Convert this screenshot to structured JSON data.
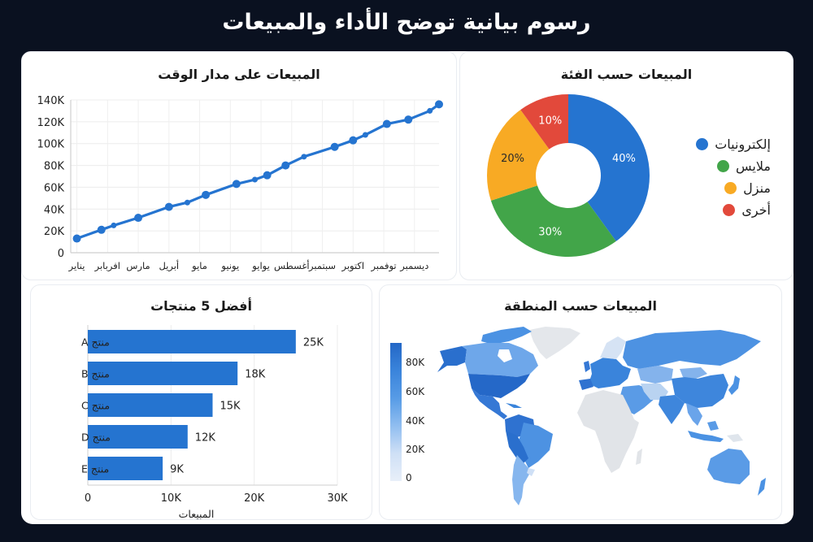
{
  "header": {
    "title": "رسوم بيانية توضح الأداء والمبيعات"
  },
  "colors": {
    "background": "#0a1120",
    "primary_blue": "#2574d0",
    "grid": "#e8e8e8",
    "axis": "#cfcfcf"
  },
  "panels": {
    "line": {
      "title": "المبيعات على مدار الوقت"
    },
    "donut": {
      "title": "المبيعات حسب الفئة"
    },
    "bar": {
      "title": "أفضل 5 منتجات"
    },
    "map": {
      "title": "المبيعات حسب المنطقة"
    }
  },
  "chart_data": [
    {
      "type": "line",
      "title": "المبيعات على مدار الوقت",
      "xlabel": "",
      "ylabel": "",
      "categories": [
        "يناير",
        "افربابر",
        "مارس",
        "أبريل",
        "مايو",
        "يونيو",
        "يوايو",
        "أغسطس",
        "سبتمبر",
        "اكتوبر",
        "توفمبر",
        "ديسمبر"
      ],
      "y_ticks": [
        "0",
        "20K",
        "40K",
        "60K",
        "80K",
        "100K",
        "120K",
        "140K"
      ],
      "ylim": [
        0,
        140000
      ],
      "grid": true,
      "series": [
        {
          "name": "المبيعات",
          "color": "#2574d0",
          "points": [
            {
              "x": 0.0,
              "y": 13000
            },
            {
              "x": 0.8,
              "y": 21000
            },
            {
              "x": 1.2,
              "y": 25000
            },
            {
              "x": 2.0,
              "y": 32000
            },
            {
              "x": 3.0,
              "y": 42000
            },
            {
              "x": 3.6,
              "y": 46000
            },
            {
              "x": 4.2,
              "y": 53000
            },
            {
              "x": 5.2,
              "y": 63000
            },
            {
              "x": 5.8,
              "y": 67000
            },
            {
              "x": 6.2,
              "y": 71000
            },
            {
              "x": 6.8,
              "y": 80000
            },
            {
              "x": 7.4,
              "y": 88000
            },
            {
              "x": 8.4,
              "y": 97000
            },
            {
              "x": 9.0,
              "y": 103000
            },
            {
              "x": 9.4,
              "y": 108000
            },
            {
              "x": 10.1,
              "y": 118000
            },
            {
              "x": 10.8,
              "y": 122000
            },
            {
              "x": 11.5,
              "y": 130000
            },
            {
              "x": 11.8,
              "y": 136000
            }
          ]
        }
      ]
    },
    {
      "type": "pie",
      "title": "المبيعات حسب الفئة",
      "donut": true,
      "legend_position": "right",
      "slices": [
        {
          "label": "إلكترونيات",
          "value": 40,
          "display": "40%",
          "color": "#2574d0",
          "text_color": "#ffffff"
        },
        {
          "label": "ملايس",
          "value": 30,
          "display": "30%",
          "color": "#42a549",
          "text_color": "#ffffff"
        },
        {
          "label": "منزل",
          "value": 20,
          "display": "20%",
          "color": "#f8aa24",
          "text_color": "#2a2a2a"
        },
        {
          "label": "أخرى",
          "value": 10,
          "display": "10%",
          "color": "#e2493b",
          "text_color": "#ffffff"
        }
      ]
    },
    {
      "type": "bar",
      "orientation": "horizontal",
      "title": "أفضل 5 منتجات",
      "xlabel": "المبيعات",
      "ylabel": "",
      "xlim": [
        0,
        30000
      ],
      "x_ticks": [
        "0",
        "10K",
        "20K",
        "30K"
      ],
      "categories": [
        "منتج A",
        "منتج B",
        "منتج C",
        "منتج D",
        "منتج E"
      ],
      "values": [
        25000,
        18000,
        15000,
        12000,
        9000
      ],
      "value_labels": [
        "25K",
        "18K",
        "15K",
        "12K",
        "9K"
      ],
      "color": "#2574d0"
    },
    {
      "type": "heatmap",
      "subtype": "choropleth-world",
      "title": "المبيعات حسب المنطقة",
      "colorbar_ticks": [
        "0",
        "20K",
        "40K",
        "60K",
        "80K"
      ],
      "range": [
        0,
        90000
      ],
      "regions": [
        {
          "name": "United States",
          "level": "80K+"
        },
        {
          "name": "Alaska",
          "level": "80K"
        },
        {
          "name": "Canada",
          "level": "40K"
        },
        {
          "name": "Mexico",
          "level": "70K"
        },
        {
          "name": "Peru/Colombia",
          "level": "70K"
        },
        {
          "name": "Brazil",
          "level": "50K"
        },
        {
          "name": "Argentina",
          "level": "35K"
        },
        {
          "name": "Western Europe",
          "level": "60K"
        },
        {
          "name": "Russia",
          "level": "50K"
        },
        {
          "name": "China",
          "level": "55K"
        },
        {
          "name": "Kazakhstan/Mongolia",
          "level": "35K"
        },
        {
          "name": "India",
          "level": "55K"
        },
        {
          "name": "Middle East",
          "level": "40K"
        },
        {
          "name": "Southeast Asia",
          "level": "40K"
        },
        {
          "name": "Australia",
          "level": "45K"
        },
        {
          "name": "Africa",
          "level": "no data"
        },
        {
          "name": "Greenland",
          "level": "no data"
        }
      ]
    }
  ]
}
